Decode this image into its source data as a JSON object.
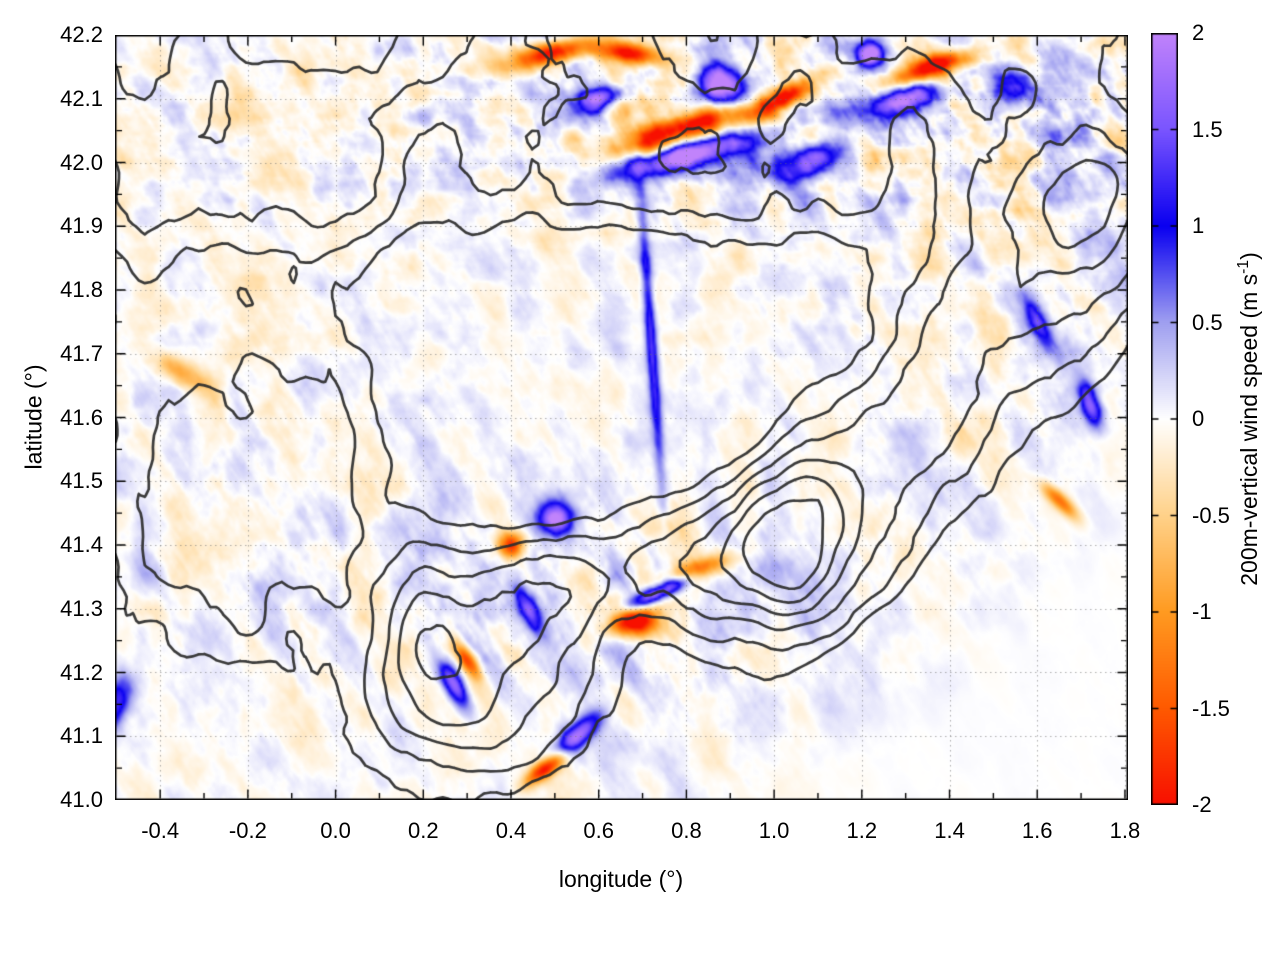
{
  "figure": {
    "background": "#ffffff",
    "axes": {
      "xlabel": "longitude (°)",
      "ylabel": "latitude (°)",
      "x_range": [
        -0.503,
        1.807
      ],
      "y_range": [
        41.0,
        42.2
      ],
      "x_ticks": [
        {
          "label": "-0.4",
          "v": -0.4
        },
        {
          "label": "-0.2",
          "v": -0.2
        },
        {
          "label": "0.0",
          "v": 0.0
        },
        {
          "label": "0.2",
          "v": 0.2
        },
        {
          "label": "0.4",
          "v": 0.4
        },
        {
          "label": "0.6",
          "v": 0.6
        },
        {
          "label": "0.8",
          "v": 0.8
        },
        {
          "label": "1.0",
          "v": 1.0
        },
        {
          "label": "1.2",
          "v": 1.2
        },
        {
          "label": "1.4",
          "v": 1.4
        },
        {
          "label": "1.6",
          "v": 1.6
        },
        {
          "label": "1.8",
          "v": 1.8
        }
      ],
      "y_ticks": [
        {
          "label": "42.2",
          "v": 42.2
        },
        {
          "label": "42.1",
          "v": 42.1
        },
        {
          "label": "42.0",
          "v": 42.0
        },
        {
          "label": "41.9",
          "v": 41.9
        },
        {
          "label": "41.8",
          "v": 41.8
        },
        {
          "label": "41.7",
          "v": 41.7
        },
        {
          "label": "41.6",
          "v": 41.6
        },
        {
          "label": "41.5",
          "v": 41.5
        },
        {
          "label": "41.4",
          "v": 41.4
        },
        {
          "label": "41.3",
          "v": 41.3
        },
        {
          "label": "41.2",
          "v": 41.2
        },
        {
          "label": "41.1",
          "v": 41.1
        },
        {
          "label": "41.0",
          "v": 41.0
        }
      ],
      "x_minor_step": 0.1,
      "y_minor_step": 0.05,
      "grid_style": "dotted",
      "grid_color": "#9a9a9a"
    },
    "colorbar": {
      "label_prefix": "200m-vertical wind speed (m s",
      "label_sup": "-1",
      "label_suffix": ")",
      "min": -2,
      "max": 2,
      "ticks": [
        {
          "label": "2",
          "v": 2
        },
        {
          "label": "1.5",
          "v": 1.5
        },
        {
          "label": "1",
          "v": 1
        },
        {
          "label": "0.5",
          "v": 0.5
        },
        {
          "label": "0",
          "v": 0
        },
        {
          "label": "-0.5",
          "v": -0.5
        },
        {
          "label": "-1",
          "v": -1
        },
        {
          "label": "-1.5",
          "v": -1.5
        },
        {
          "label": "-2",
          "v": -2
        }
      ],
      "stops": [
        {
          "v": -2.0,
          "c": "#f81000"
        },
        {
          "v": -1.5,
          "c": "#ff5a00"
        },
        {
          "v": -1.0,
          "c": "#ff9b21"
        },
        {
          "v": -0.5,
          "c": "#ffd28a"
        },
        {
          "v": 0.0,
          "c": "#ffffff"
        },
        {
          "v": 0.5,
          "c": "#a0a0f0"
        },
        {
          "v": 1.0,
          "c": "#0a00f0"
        },
        {
          "v": 1.5,
          "c": "#7a55ff"
        },
        {
          "v": 2.0,
          "c": "#c183fb"
        }
      ]
    }
  },
  "chart_data": {
    "type": "heatmap",
    "title": "",
    "xlabel": "longitude (°)",
    "ylabel": "latitude (°)",
    "x_range": [
      -0.503,
      1.807
    ],
    "y_range": [
      41.0,
      42.2
    ],
    "value_range": [
      -2,
      2
    ],
    "colorbar_label": "200m-vertical wind speed (m s-1)",
    "x_tick_values": [
      -0.4,
      -0.2,
      0.0,
      0.2,
      0.4,
      0.6,
      0.8,
      1.0,
      1.2,
      1.4,
      1.6,
      1.8
    ],
    "y_tick_values": [
      41.0,
      41.1,
      41.2,
      41.3,
      41.4,
      41.5,
      41.6,
      41.7,
      41.8,
      41.9,
      42.0,
      42.1,
      42.2
    ],
    "colorbar_tick_values": [
      2,
      1.5,
      1,
      0.5,
      0,
      -0.5,
      -1,
      -1.5,
      -2
    ],
    "overlay": "terrain elevation contours (black)",
    "texture": {
      "seed_blob": 1337,
      "seed_stripe1": 4242,
      "seed_stripe2": 909,
      "seed_terrain": 777,
      "blob_scale": 14,
      "stripe_nwse": [
        16,
        3.5
      ],
      "stripe_ew": [
        5.5,
        26
      ]
    },
    "features": [
      {
        "x": 0.49,
        "y": 42.17,
        "len": 0.09,
        "wid": 0.018,
        "ang": 8,
        "amp": -2.2
      },
      {
        "x": 0.67,
        "y": 42.17,
        "len": 0.07,
        "wid": 0.016,
        "ang": -5,
        "amp": -2.0
      },
      {
        "x": 0.78,
        "y": 42.05,
        "len": 0.16,
        "wid": 0.022,
        "ang": 12,
        "amp": -2.4
      },
      {
        "x": 1.02,
        "y": 42.1,
        "len": 0.08,
        "wid": 0.018,
        "ang": 20,
        "amp": -2.0
      },
      {
        "x": 1.36,
        "y": 42.15,
        "len": 0.1,
        "wid": 0.018,
        "ang": 12,
        "amp": -2.2
      },
      {
        "x": 0.68,
        "y": 41.28,
        "len": 0.05,
        "wid": 0.022,
        "ang": 0,
        "amp": -2.3
      },
      {
        "x": 0.83,
        "y": 41.36,
        "len": 0.07,
        "wid": 0.016,
        "ang": 15,
        "amp": -2.0
      },
      {
        "x": 0.48,
        "y": 41.05,
        "len": 0.05,
        "wid": 0.015,
        "ang": 25,
        "amp": -2.0
      },
      {
        "x": 0.4,
        "y": 41.4,
        "len": 0.03,
        "wid": 0.02,
        "ang": 0,
        "amp": -1.8
      },
      {
        "x": 0.3,
        "y": 41.22,
        "len": 0.04,
        "wid": 0.015,
        "ang": -40,
        "amp": -1.6
      },
      {
        "x": 1.65,
        "y": 41.47,
        "len": 0.05,
        "wid": 0.014,
        "ang": -30,
        "amp": -1.3
      },
      {
        "x": -0.35,
        "y": 41.67,
        "len": 0.06,
        "wid": 0.02,
        "ang": -20,
        "amp": -1.1
      },
      {
        "x": 0.8,
        "y": 42.01,
        "len": 0.14,
        "wid": 0.02,
        "ang": 10,
        "amp": 2.2
      },
      {
        "x": 0.88,
        "y": 42.12,
        "len": 0.05,
        "wid": 0.03,
        "ang": 0,
        "amp": 2.4
      },
      {
        "x": 1.22,
        "y": 42.17,
        "len": 0.03,
        "wid": 0.02,
        "ang": 0,
        "amp": 2.4
      },
      {
        "x": 1.3,
        "y": 42.1,
        "len": 0.08,
        "wid": 0.02,
        "ang": 10,
        "amp": 2.0
      },
      {
        "x": 0.6,
        "y": 42.1,
        "len": 0.06,
        "wid": 0.02,
        "ang": 10,
        "amp": 1.8
      },
      {
        "x": 0.72,
        "y": 41.72,
        "len": 0.22,
        "wid": 0.013,
        "ang": 96,
        "amp": 1.3
      },
      {
        "x": 0.75,
        "y": 41.33,
        "len": 0.1,
        "wid": 0.014,
        "ang": 18,
        "amp": 2.2
      },
      {
        "x": 0.5,
        "y": 41.44,
        "len": 0.04,
        "wid": 0.025,
        "ang": 0,
        "amp": 2.0
      },
      {
        "x": 0.44,
        "y": 41.3,
        "len": 0.05,
        "wid": 0.02,
        "ang": -50,
        "amp": 1.8
      },
      {
        "x": 0.27,
        "y": 41.18,
        "len": 0.05,
        "wid": 0.02,
        "ang": -45,
        "amp": 1.8
      },
      {
        "x": 1.08,
        "y": 42.0,
        "len": 0.06,
        "wid": 0.025,
        "ang": 15,
        "amp": 1.8
      },
      {
        "x": 1.55,
        "y": 42.12,
        "len": 0.05,
        "wid": 0.03,
        "ang": 0,
        "amp": 1.6
      },
      {
        "x": 1.72,
        "y": 41.62,
        "len": 0.04,
        "wid": 0.02,
        "ang": -60,
        "amp": 1.6
      },
      {
        "x": 1.6,
        "y": 41.75,
        "len": 0.05,
        "wid": 0.02,
        "ang": -50,
        "amp": 1.4
      },
      {
        "x": 0.55,
        "y": 41.1,
        "len": 0.06,
        "wid": 0.02,
        "ang": 30,
        "amp": 1.8
      },
      {
        "x": -0.5,
        "y": 41.15,
        "len": 0.05,
        "wid": 0.03,
        "ang": 60,
        "amp": 1.4
      }
    ],
    "contours": {
      "color": "#2d2d2d",
      "line_width": 2.7,
      "levels": [
        0.18,
        0.33,
        0.48,
        0.63,
        0.78,
        0.93
      ]
    }
  }
}
